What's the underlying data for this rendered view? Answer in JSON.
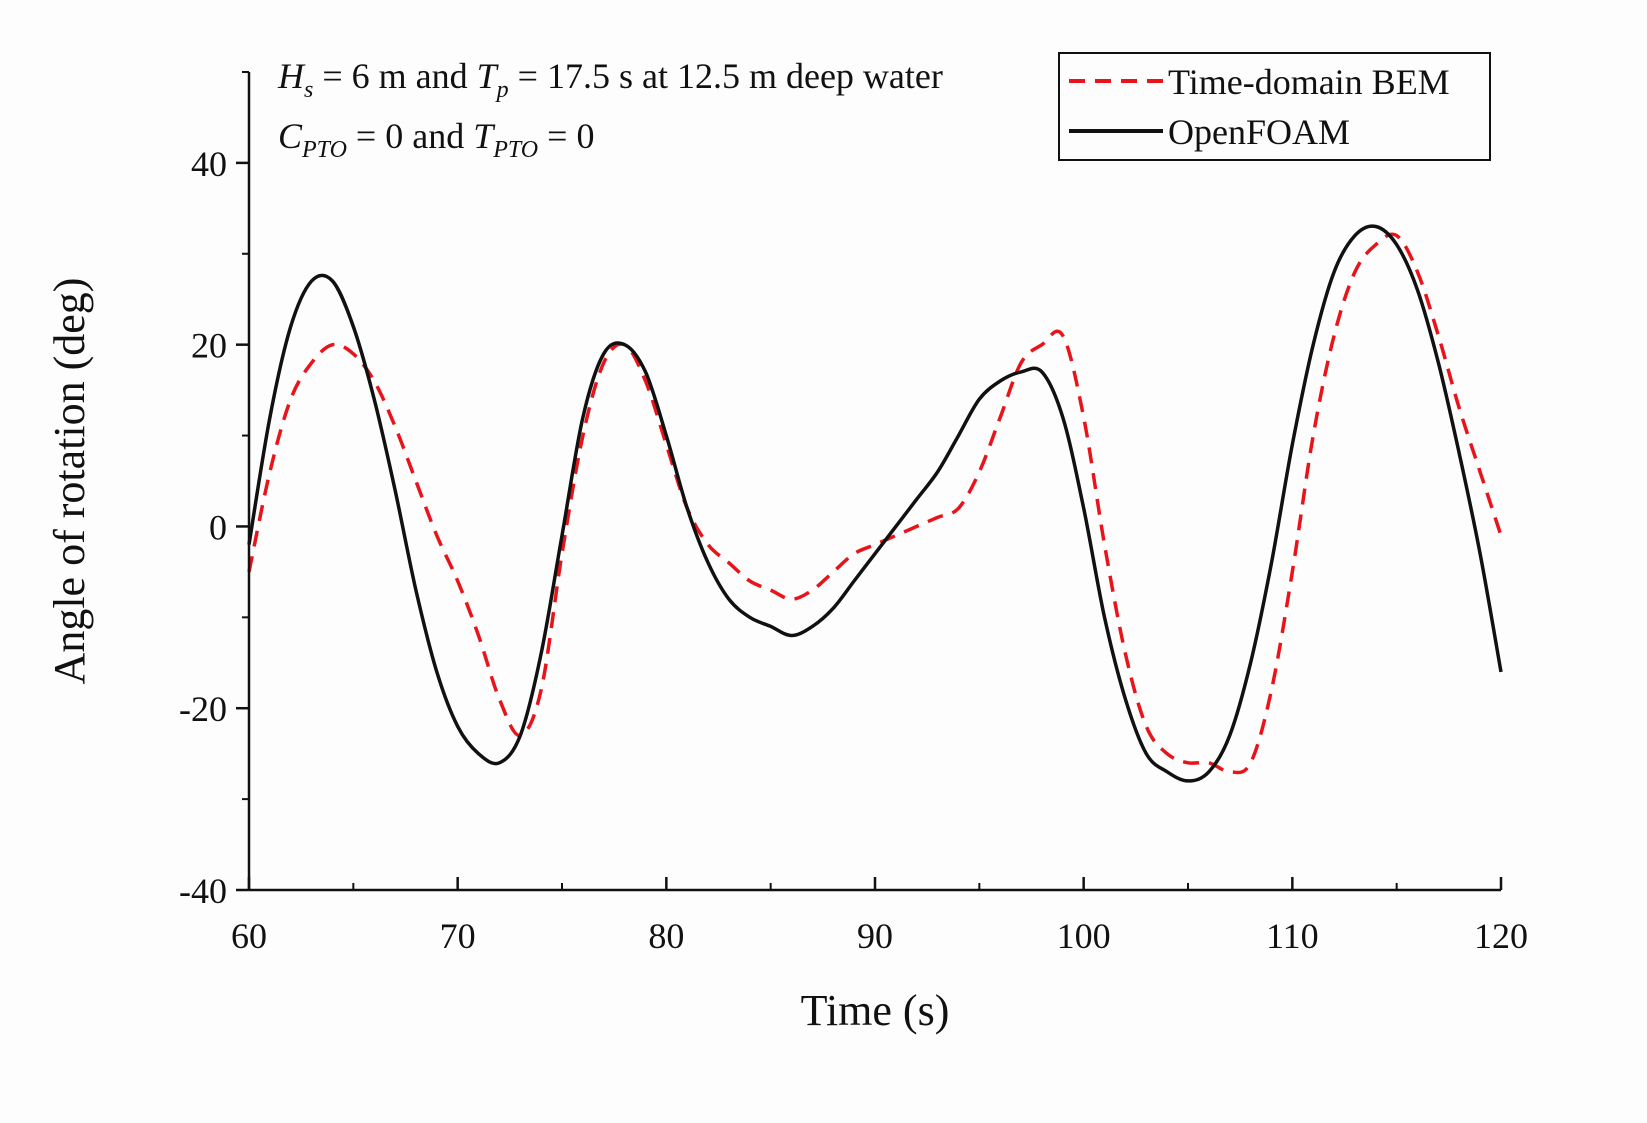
{
  "chart_data": {
    "type": "line",
    "xlabel": "Time (s)",
    "ylabel": "Angle of rotation (deg)",
    "xlim": [
      60,
      120
    ],
    "ylim": [
      -40,
      50
    ],
    "x_ticks": [
      60,
      70,
      80,
      90,
      100,
      110,
      120
    ],
    "y_ticks": [
      -40,
      -20,
      0,
      20,
      40
    ],
    "grid": false,
    "legend_position": "top-right",
    "annotation": {
      "line1": {
        "H": "H",
        "H_sub": "s",
        "mid": " = 6 m and ",
        "T": "T",
        "T_sub": "p",
        "tail": " = 17.5 s at 12.5 m deep water"
      },
      "line2": {
        "C": "C",
        "C_sub": "PTO",
        "mid": " = 0 and ",
        "T": "T",
        "T_sub": "PTO",
        "tail": " = 0"
      }
    },
    "series": [
      {
        "name": "Time-domain BEM",
        "color": "#e8141a",
        "dash": true,
        "x": [
          60,
          61,
          62,
          63,
          64,
          65,
          66,
          67,
          68,
          69,
          70,
          71,
          72,
          73,
          74,
          75,
          76,
          77,
          78,
          79,
          80,
          81,
          82,
          83,
          84,
          85,
          86,
          87,
          88,
          89,
          90,
          91,
          92,
          93,
          94,
          95,
          96,
          97,
          98,
          99,
          100,
          101,
          102,
          103,
          104,
          105,
          106,
          107,
          108,
          109,
          110,
          111,
          112,
          113,
          114,
          115,
          116,
          117,
          118,
          119,
          120
        ],
        "values": [
          -5,
          6,
          14,
          18,
          20,
          19,
          16,
          11,
          5,
          -1,
          -6,
          -12,
          -19,
          -23,
          -18,
          -3,
          10,
          18,
          20,
          16,
          9,
          2,
          -2,
          -4,
          -6,
          -7,
          -8,
          -7,
          -5,
          -3,
          -2,
          -1,
          0,
          1,
          2,
          6,
          12,
          18,
          20,
          21,
          12,
          -2,
          -14,
          -22,
          -25,
          -26,
          -26,
          -27,
          -26,
          -18,
          -5,
          10,
          21,
          28,
          31,
          32,
          28,
          21,
          13,
          6,
          -1
        ]
      },
      {
        "name": "OpenFOAM",
        "color": "#111111",
        "dash": false,
        "x": [
          60,
          61,
          62,
          63,
          64,
          65,
          66,
          67,
          68,
          69,
          70,
          71,
          72,
          73,
          74,
          75,
          76,
          77,
          78,
          79,
          80,
          81,
          82,
          83,
          84,
          85,
          86,
          87,
          88,
          89,
          90,
          91,
          92,
          93,
          94,
          95,
          96,
          97,
          98,
          99,
          100,
          101,
          102,
          103,
          104,
          105,
          106,
          107,
          108,
          109,
          110,
          111,
          112,
          113,
          114,
          115,
          116,
          117,
          118,
          119,
          120
        ],
        "values": [
          -2,
          12,
          22,
          27,
          27,
          22,
          14,
          4,
          -7,
          -16,
          -22,
          -25,
          -26,
          -23,
          -14,
          -1,
          12,
          19,
          20,
          17,
          10,
          2,
          -4,
          -8,
          -10,
          -11,
          -12,
          -11,
          -9,
          -6,
          -3,
          0,
          3,
          6,
          10,
          14,
          16,
          17,
          17,
          12,
          2,
          -10,
          -19,
          -25,
          -27,
          -28,
          -27,
          -23,
          -15,
          -4,
          9,
          20,
          28,
          32,
          33,
          31,
          26,
          18,
          8,
          -3,
          -16
        ]
      }
    ]
  }
}
